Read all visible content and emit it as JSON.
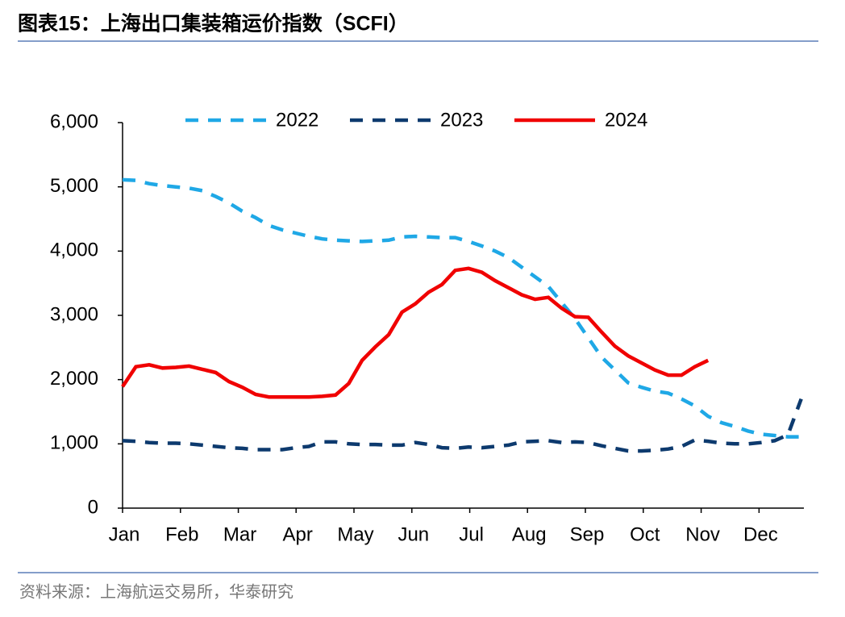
{
  "chart_data": {
    "type": "line",
    "title": "图表15：上海出口集装箱运价指数（SCFI）",
    "source": "资料来源：上海航运交易所，华泰研究",
    "x": [
      0,
      1,
      2,
      3,
      4,
      5,
      6,
      7,
      8,
      9,
      10,
      11,
      12,
      13,
      14,
      15,
      16,
      17,
      18,
      19,
      20,
      21,
      22,
      23,
      24,
      25,
      26,
      27,
      28,
      29,
      30,
      31,
      32,
      33,
      34,
      35,
      36,
      37,
      38,
      39,
      40,
      41,
      42,
      43,
      44,
      45,
      46,
      47,
      48,
      49,
      50,
      51
    ],
    "xlim": [
      0,
      51.2
    ],
    "xticks": [
      {
        "value": 0,
        "label": "Jan"
      },
      {
        "value": 4.35,
        "label": "Feb"
      },
      {
        "value": 8.7,
        "label": "Mar"
      },
      {
        "value": 13.04,
        "label": "Apr"
      },
      {
        "value": 17.39,
        "label": "May"
      },
      {
        "value": 21.74,
        "label": "Jun"
      },
      {
        "value": 26.09,
        "label": "Jul"
      },
      {
        "value": 30.43,
        "label": "Aug"
      },
      {
        "value": 34.78,
        "label": "Sep"
      },
      {
        "value": 39.13,
        "label": "Oct"
      },
      {
        "value": 43.48,
        "label": "Nov"
      },
      {
        "value": 47.83,
        "label": "Dec"
      }
    ],
    "ylim": [
      0,
      6000
    ],
    "yticks": [
      0,
      {
        "value": 1000,
        "label": "1,000"
      },
      {
        "value": 2000,
        "label": "2,000"
      },
      {
        "value": 3000,
        "label": "3,000"
      },
      {
        "value": 4000,
        "label": "4,000"
      },
      {
        "value": 5000,
        "label": "5,000"
      },
      {
        "value": 6000,
        "label": "6,000"
      }
    ],
    "series": [
      {
        "name": "2022",
        "color": "#1fa8e6",
        "dash": true,
        "values": [
          5110,
          5100,
          5050,
          5020,
          5000,
          4980,
          4940,
          4850,
          4750,
          4620,
          4520,
          4400,
          4330,
          4280,
          4230,
          4190,
          4170,
          4160,
          4150,
          4160,
          4170,
          4220,
          4230,
          4220,
          4210,
          4210,
          4150,
          4080,
          4000,
          3900,
          3750,
          3600,
          3450,
          3200,
          2950,
          2650,
          2350,
          2150,
          1950,
          1880,
          1820,
          1790,
          1700,
          1590,
          1430,
          1330,
          1270,
          1200,
          1150,
          1130,
          1110,
          1110
        ]
      },
      {
        "name": "2023",
        "color": "#0d3a6e",
        "dash": true,
        "values": [
          1050,
          1040,
          1020,
          1010,
          1010,
          1000,
          980,
          960,
          940,
          930,
          910,
          910,
          910,
          940,
          960,
          1030,
          1030,
          1000,
          990,
          990,
          980,
          980,
          1020,
          990,
          940,
          930,
          950,
          940,
          960,
          980,
          1030,
          1040,
          1050,
          1020,
          1030,
          1020,
          970,
          930,
          890,
          890,
          900,
          920,
          960,
          1060,
          1040,
          1010,
          1000,
          1000,
          1020,
          1050,
          1140,
          1700
        ]
      },
      {
        "name": "2024",
        "color": "#f00000",
        "dash": false,
        "values": [
          1890,
          2200,
          2230,
          2180,
          2190,
          2210,
          2160,
          2110,
          1970,
          1880,
          1770,
          1730,
          1730,
          1730,
          1730,
          1740,
          1760,
          1940,
          2300,
          2510,
          2700,
          3050,
          3180,
          3360,
          3480,
          3700,
          3730,
          3670,
          3540,
          3430,
          3320,
          3250,
          3280,
          3110,
          2980,
          2970,
          2740,
          2520,
          2370,
          2260,
          2150,
          2070,
          2070,
          2200,
          2300,
          null,
          null,
          null,
          null,
          null,
          null,
          null
        ]
      }
    ]
  }
}
